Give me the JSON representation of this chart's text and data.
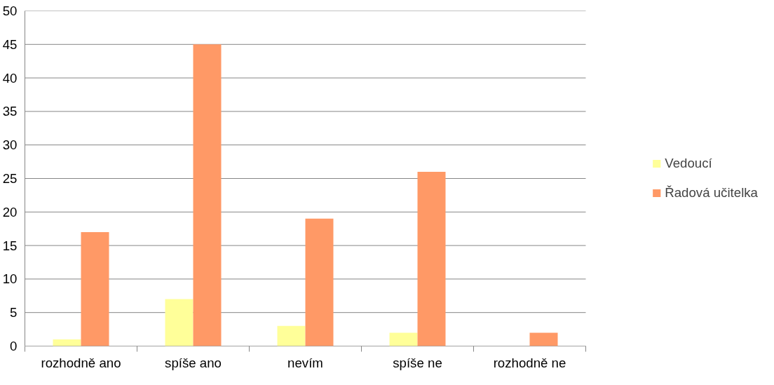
{
  "chart_data": {
    "type": "bar",
    "categories": [
      "rozhodně ano",
      "spíše ano",
      "nevím",
      "spíše ne",
      "rozhodně ne"
    ],
    "series": [
      {
        "name": "Vedoucí",
        "color": "#ffff99",
        "values": [
          1,
          7,
          3,
          2,
          0
        ]
      },
      {
        "name": "Řadová učitelka",
        "color": "#ff9966",
        "values": [
          17,
          45,
          19,
          26,
          2
        ]
      }
    ],
    "ylim": [
      0,
      50
    ],
    "yticks": [
      0,
      5,
      10,
      15,
      20,
      25,
      30,
      35,
      40,
      45,
      50
    ],
    "grid": "y",
    "legend": "right"
  }
}
